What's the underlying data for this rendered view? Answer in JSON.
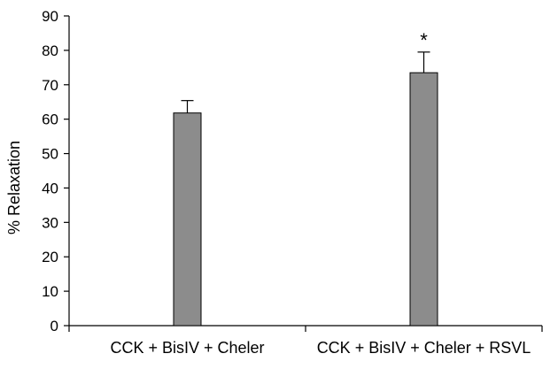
{
  "chart_data": {
    "type": "bar",
    "title": "",
    "xlabel": "",
    "ylabel": "% Relaxation",
    "ylim": [
      0,
      90
    ],
    "yticks": [
      0,
      10,
      20,
      30,
      40,
      50,
      60,
      70,
      80,
      90
    ],
    "categories": [
      "CCK + BisIV + Cheler",
      "CCK + BisIV + Cheler + RSVL"
    ],
    "values": [
      61.8,
      73.5
    ],
    "errors": [
      3.6,
      6.0
    ],
    "annotations": [
      "",
      "*"
    ],
    "bar_color": "#8c8c8c",
    "grid": false,
    "legend": "none"
  }
}
